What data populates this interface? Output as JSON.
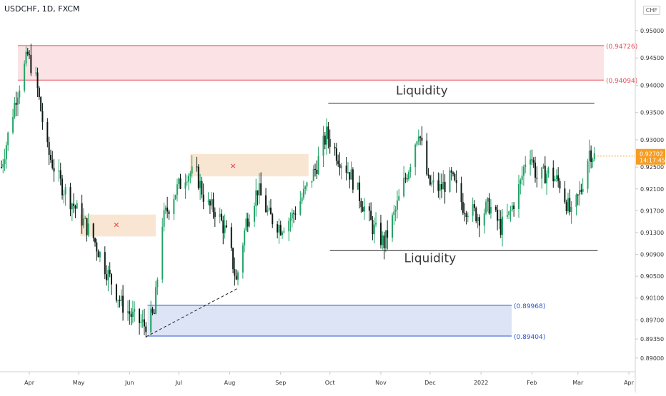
{
  "header": {
    "symbol_title": "USDCHF, 1D, FXCM",
    "currency": "CHF"
  },
  "colors": {
    "up": "#22a366",
    "down": "#0b1a14",
    "supply_zone": "#e84c5c",
    "demand_zone": "#2c54c8",
    "small_zone": "#f5d6b4",
    "marker": "#e85a5a",
    "last_price_bg": "#f59d25"
  },
  "chart_data": {
    "type": "candlestick",
    "ylim": [
      0.8875,
      0.953
    ],
    "y_ticks": [
      "0.95000",
      "0.94500",
      "0.94000",
      "0.93500",
      "0.93000",
      "0.92500",
      "0.92100",
      "0.91700",
      "0.91300",
      "0.90900",
      "0.90500",
      "0.90100",
      "0.89700",
      "0.89350",
      "0.89000"
    ],
    "x_ticks": [
      "Apr",
      "May",
      "Jun",
      "Jul",
      "Aug",
      "Sep",
      "Oct",
      "Nov",
      "Dec",
      "2022",
      "Feb",
      "Mar",
      "Apr"
    ],
    "x_tick_dates": [
      "2021-04-01",
      "2021-05-01",
      "2021-06-01",
      "2021-07-01",
      "2021-08-01",
      "2021-09-01",
      "2021-10-01",
      "2021-11-01",
      "2021-12-01",
      "2022-01-01",
      "2022-02-01",
      "2022-03-01",
      "2022-04-01"
    ],
    "last_price": {
      "value": "0.92702",
      "countdown": "14:17:45"
    },
    "zones": [
      {
        "name": "supply",
        "top": 0.94726,
        "bottom": 0.94094,
        "start": "2021-03-25",
        "end": "2022-03-31",
        "top_label": "(0.94726)",
        "bottom_label": "(0.94094)"
      },
      {
        "name": "demand",
        "top": 0.89968,
        "bottom": 0.89404,
        "start": "2021-06-12",
        "end": "2022-01-20",
        "top_label": "(0.89968)",
        "bottom_label": "(0.89404)"
      },
      {
        "name": "broken-zone-1",
        "top": 0.9163,
        "bottom": 0.9123,
        "start": "2021-05-02",
        "end": "2021-06-17"
      },
      {
        "name": "broken-zone-2",
        "top": 0.9274,
        "bottom": 0.9233,
        "start": "2021-07-08",
        "end": "2021-09-18"
      }
    ],
    "markers": [
      {
        "name": "x-marker-1",
        "date": "2021-05-24",
        "value": 0.9145
      },
      {
        "name": "x-marker-2",
        "date": "2021-08-03",
        "value": 0.9253
      }
    ],
    "lines": [
      {
        "name": "liquidity-top-line",
        "start": "2021-09-30",
        "end": "2022-03-11",
        "value": 0.9367,
        "style": "solid"
      },
      {
        "name": "liquidity-bottom-line",
        "start": "2021-10-01",
        "end": "2022-03-13",
        "value": 0.9097,
        "style": "solid"
      },
      {
        "name": "trend-line",
        "start": "2021-06-11",
        "end": "2021-08-06",
        "v1": 0.8939,
        "v2": 0.9028,
        "style": "dashed"
      }
    ],
    "annotations": [
      {
        "name": "liquidity-label-top",
        "text": "Liquidity",
        "date": "2021-11-26",
        "value": 0.9383
      },
      {
        "name": "liquidity-label-bottom",
        "text": "Liquidity",
        "date": "2021-12-01",
        "value": 0.9076
      }
    ],
    "anchors": [
      [
        "2021-03-15",
        0.925
      ],
      [
        "2021-03-24",
        0.938
      ],
      [
        "2021-03-31",
        0.9455
      ],
      [
        "2021-04-05",
        0.941
      ],
      [
        "2021-04-12",
        0.928
      ],
      [
        "2021-04-20",
        0.922
      ],
      [
        "2021-04-30",
        0.917
      ],
      [
        "2021-05-10",
        0.912
      ],
      [
        "2021-05-18",
        0.906
      ],
      [
        "2021-05-27",
        0.9
      ],
      [
        "2021-06-03",
        0.8975
      ],
      [
        "2021-06-10",
        0.896
      ],
      [
        "2021-06-16",
        0.898
      ],
      [
        "2021-06-21",
        0.915
      ],
      [
        "2021-06-28",
        0.92
      ],
      [
        "2021-07-06",
        0.924
      ],
      [
        "2021-07-12",
        0.9235
      ],
      [
        "2021-07-18",
        0.918
      ],
      [
        "2021-07-24",
        0.917
      ],
      [
        "2021-07-31",
        0.912
      ],
      [
        "2021-08-05",
        0.904
      ],
      [
        "2021-08-11",
        0.915
      ],
      [
        "2021-08-18",
        0.921
      ],
      [
        "2021-08-25",
        0.916
      ],
      [
        "2021-09-01",
        0.914
      ],
      [
        "2021-09-08",
        0.916
      ],
      [
        "2021-09-15",
        0.92
      ],
      [
        "2021-09-22",
        0.9245
      ],
      [
        "2021-09-29",
        0.931
      ],
      [
        "2021-10-06",
        0.927
      ],
      [
        "2021-10-13",
        0.924
      ],
      [
        "2021-10-20",
        0.919
      ],
      [
        "2021-10-27",
        0.914
      ],
      [
        "2021-11-03",
        0.911
      ],
      [
        "2021-11-10",
        0.917
      ],
      [
        "2021-11-18",
        0.925
      ],
      [
        "2021-11-24",
        0.932
      ],
      [
        "2021-11-30",
        0.922
      ],
      [
        "2021-12-07",
        0.921
      ],
      [
        "2021-12-14",
        0.923
      ],
      [
        "2021-12-21",
        0.918
      ],
      [
        "2021-12-31",
        0.916
      ],
      [
        "2022-01-06",
        0.918
      ],
      [
        "2022-01-13",
        0.914
      ],
      [
        "2022-01-18",
        0.916
      ],
      [
        "2022-01-25",
        0.922
      ],
      [
        "2022-01-30",
        0.929
      ],
      [
        "2022-02-04",
        0.923
      ],
      [
        "2022-02-11",
        0.924
      ],
      [
        "2022-02-18",
        0.922
      ],
      [
        "2022-02-25",
        0.916
      ],
      [
        "2022-03-03",
        0.921
      ],
      [
        "2022-03-08",
        0.928
      ],
      [
        "2022-03-11",
        0.927
      ]
    ]
  }
}
